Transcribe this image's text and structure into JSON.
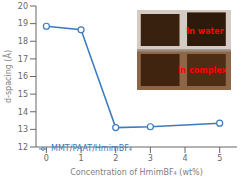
{
  "chart_data": {
    "type": "line",
    "x": [
      0,
      1,
      2,
      3,
      5
    ],
    "series": [
      {
        "name": "MMT/PAAT/HmimBF₄",
        "color": "#3a7abf",
        "values": [
          18.85,
          18.65,
          13.1,
          13.15,
          13.35
        ],
        "marker": "circle"
      }
    ],
    "xlabel": "Concentration of HmimBF₄ (wt%)",
    "ylabel": "d-spacing (Å)",
    "xlim": [
      -0.3,
      5.5
    ],
    "ylim": [
      12,
      20
    ],
    "xticks": [
      0,
      1,
      2,
      3,
      4,
      5
    ],
    "yticks": [
      12,
      13,
      14,
      15,
      16,
      17,
      18,
      19,
      20
    ],
    "grid": false,
    "legend": "lower left",
    "annotations": [
      {
        "text": "In water",
        "color": "red"
      },
      {
        "text": "In complex",
        "color": "red"
      }
    ]
  }
}
